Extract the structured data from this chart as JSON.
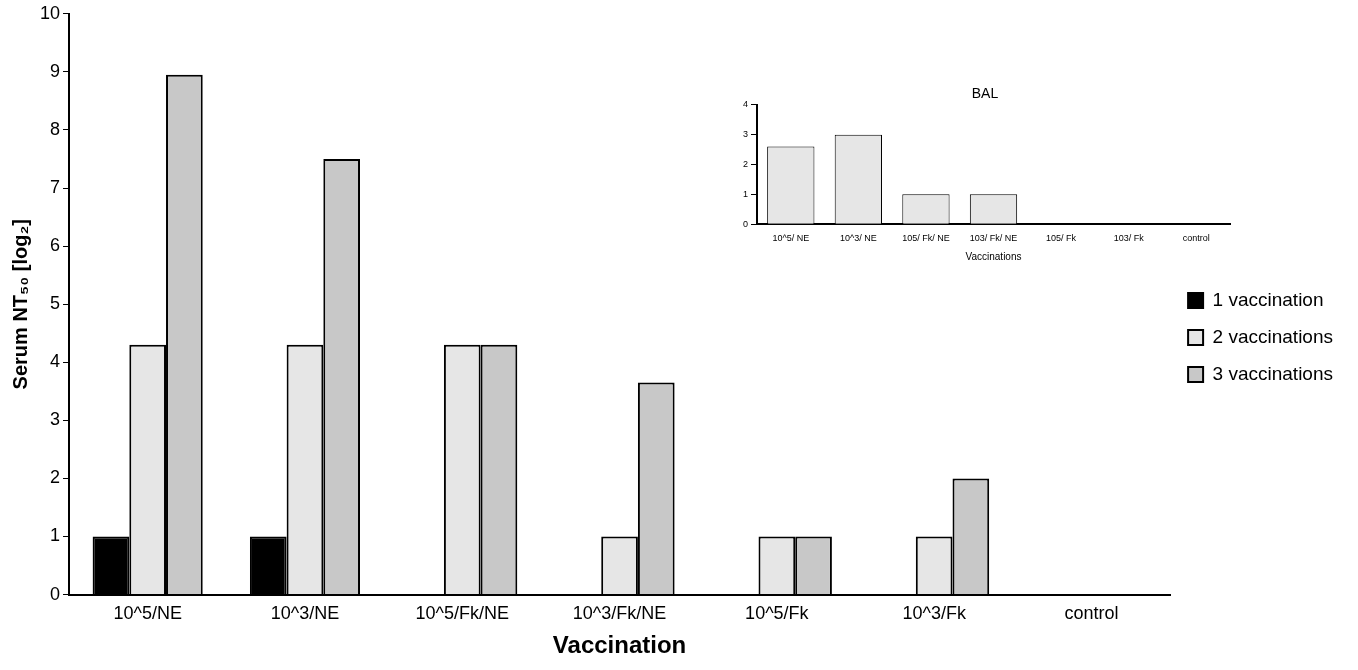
{
  "chart_data": [
    {
      "type": "bar",
      "xlabel": "Vaccination",
      "ylabel": "Serum NT₅₀ [log₂]",
      "categories": [
        "10^5/NE",
        "10^3/NE",
        "10^5/Fk/NE",
        "10^3/Fk/NE",
        "10^5/Fk",
        "10^3/Fk",
        "control"
      ],
      "series": [
        {
          "name": "1 vaccination",
          "color": "#000000",
          "values": [
            1,
            1,
            0,
            0,
            0,
            0,
            0
          ]
        },
        {
          "name": "2 vaccinations",
          "color": "#e6e6e6",
          "values": [
            4.3,
            4.3,
            4.3,
            1,
            1,
            1,
            0
          ]
        },
        {
          "name": "3 vaccinations",
          "color": "#c8c8c8",
          "values": [
            8.95,
            7.5,
            4.3,
            3.65,
            1,
            2,
            0
          ]
        }
      ],
      "ylim": [
        0,
        10
      ],
      "yticks": [
        0,
        1,
        2,
        3,
        4,
        5,
        6,
        7,
        8,
        9,
        10
      ],
      "grid": false,
      "legend": "right"
    },
    {
      "type": "bar",
      "title": "BAL",
      "xlabel": "Vaccinations",
      "categories": [
        "10^5/ NE",
        "10^3/ NE",
        "105/ Fk/ NE",
        "103/ Fk/ NE",
        "105/ Fk",
        "103/ Fk",
        "control"
      ],
      "series": [
        {
          "color": "#e6e6e6",
          "values": [
            2.6,
            3,
            1,
            1,
            0,
            0,
            0
          ]
        }
      ],
      "ylim": [
        0,
        4
      ],
      "yticks": [
        0,
        1,
        2,
        3,
        4
      ],
      "grid": false,
      "legend": false
    }
  ]
}
